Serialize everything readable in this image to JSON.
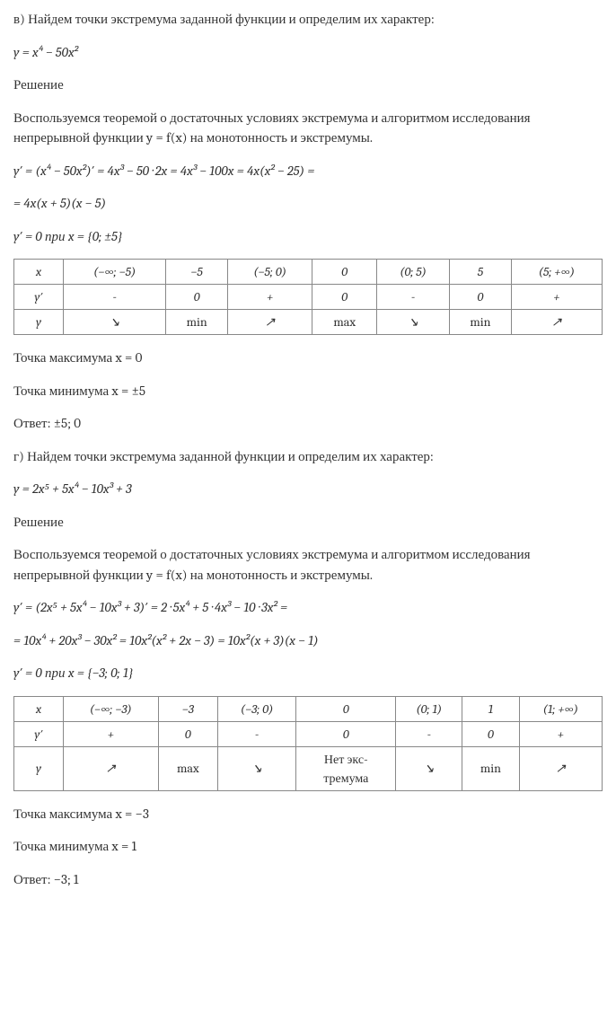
{
  "problem_v": {
    "heading": "в) Найдем точки экстремума заданной функции и определим их характер:",
    "function": "y = x⁴ − 50x²",
    "solution_label": "Решение",
    "theorem_text": "Воспользуемся теоремой о достаточных условиях экстремума и алгоритмом исследования непрерывной функции y = f(x) на монотонность и экстремумы.",
    "derivative_line1": "y′ = (x⁴ − 50x²)′ = 4x³ − 50 · 2x = 4x³ − 100x = 4x(x² − 25) =",
    "derivative_line2": "= 4x(x + 5)(x − 5)",
    "zero_points": "y′ = 0 при x = {0; ±5}",
    "table": {
      "columns": [
        "x",
        "(−∞; −5)",
        "−5",
        "(−5; 0)",
        "0",
        "(0; 5)",
        "5",
        "(5; +∞)"
      ],
      "row_deriv": [
        "y′",
        "-",
        "0",
        "+",
        "0",
        "-",
        "0",
        "+"
      ],
      "row_func": [
        "y",
        "↘",
        "min",
        "↗",
        "max",
        "↘",
        "min",
        "↗"
      ],
      "border_color": "#888888",
      "cell_bg": "#ffffff"
    },
    "max_point": "Точка максимума x = 0",
    "min_point": "Точка минимума x = ±5",
    "answer": "Ответ: ±5; 0"
  },
  "problem_g": {
    "heading": "г) Найдем точки экстремума заданной функции и определим их характер:",
    "function": "y = 2x⁵ + 5x⁴ − 10x³ + 3",
    "solution_label": "Решение",
    "theorem_text": "Воспользуемся теоремой о достаточных условиях экстремума и алгоритмом исследования непрерывной функции y = f(x) на монотонность и экстремумы.",
    "derivative_line1": "y′ = (2x⁵ + 5x⁴ − 10x³ + 3)′ = 2 · 5x⁴ + 5 · 4x³ − 10 · 3x² =",
    "derivative_line2": "= 10x⁴ + 20x³ − 30x² = 10x²(x² + 2x − 3) = 10x²(x + 3)(x − 1)",
    "zero_points": "y′ = 0 при x = {−3; 0; 1}",
    "table": {
      "columns": [
        "x",
        "(−∞; −3)",
        "−3",
        "(−3; 0)",
        "0",
        "(0; 1)",
        "1",
        "(1; +∞)"
      ],
      "row_deriv": [
        "y′",
        "+",
        "0",
        "-",
        "0",
        "-",
        "0",
        "+"
      ],
      "row_func": [
        "y",
        "↗",
        "max",
        "↘",
        "Нет экс-\nтремума",
        "↘",
        "min",
        "↗"
      ],
      "border_color": "#888888",
      "cell_bg": "#ffffff"
    },
    "max_point": "Точка максимума x = −3",
    "min_point": "Точка минимума x = 1",
    "answer": "Ответ: −3; 1"
  }
}
